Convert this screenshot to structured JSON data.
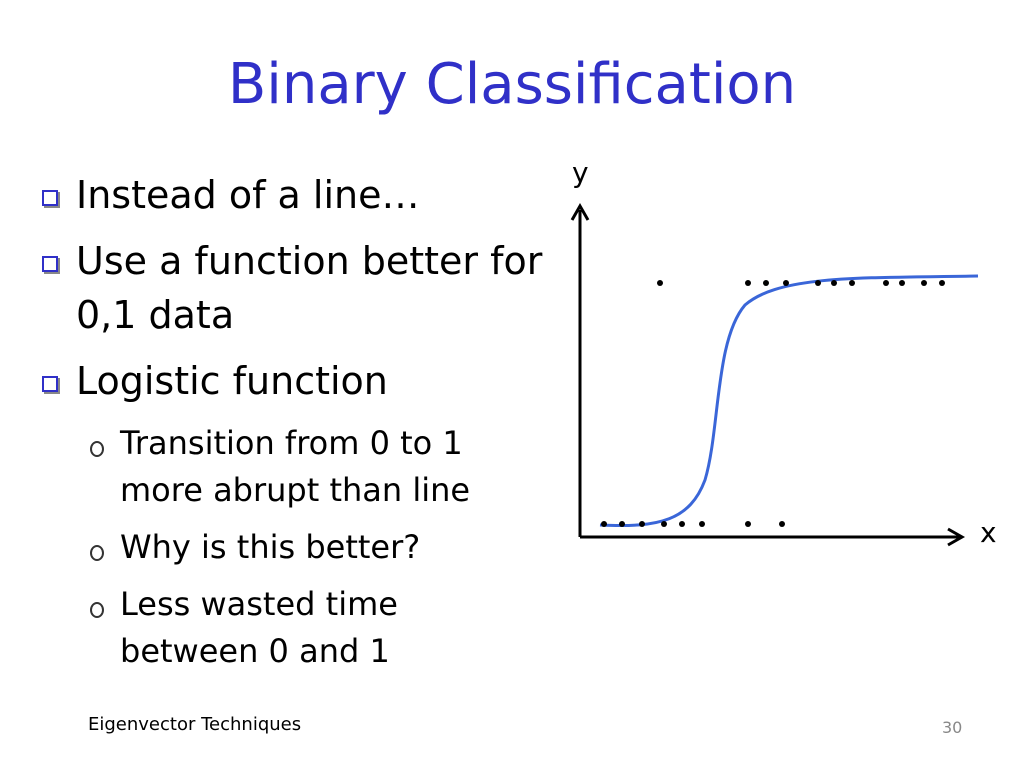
{
  "title": "Binary Classification",
  "bullets": [
    {
      "text": "Instead of a line…"
    },
    {
      "text": "Use a function better for 0,1 data"
    },
    {
      "text": "Logistic function",
      "sub": [
        "Transition from 0 to 1 more abrupt than line",
        "Why is this better?",
        "Less wasted time between 0 and 1"
      ]
    }
  ],
  "figure": {
    "y_label": "y",
    "x_label": "x"
  },
  "footer": {
    "text": "Eigenvector Techniques",
    "page": "30"
  }
}
